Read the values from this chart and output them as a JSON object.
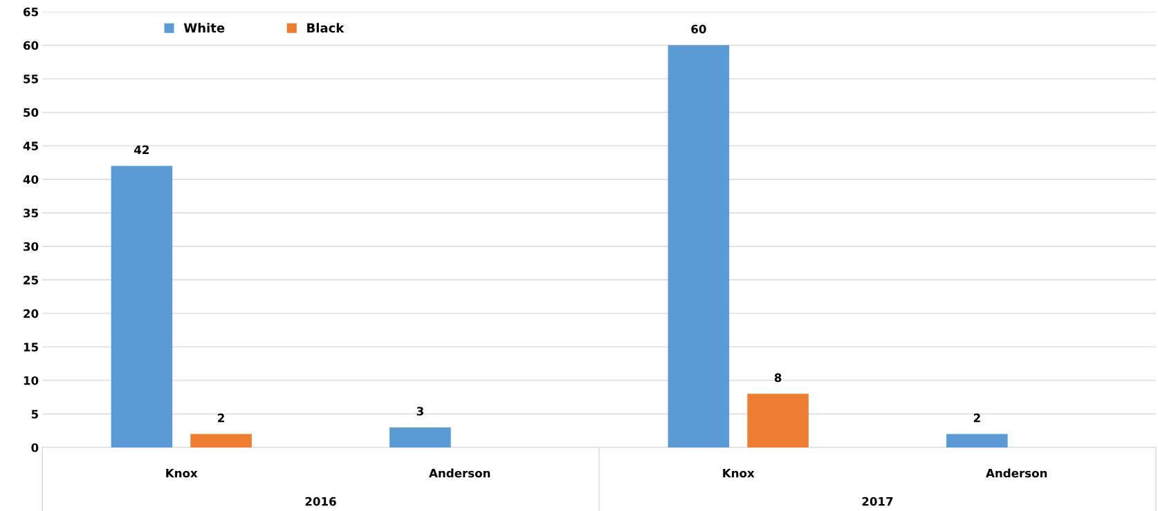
{
  "chart_data": {
    "type": "bar",
    "categories": [
      "Knox",
      "Anderson",
      "Knox",
      "Anderson"
    ],
    "series": [
      {
        "name": "White",
        "color": "#5b9bd5",
        "values": [
          42,
          3,
          60,
          2
        ]
      },
      {
        "name": "Black",
        "color": "#ed7d31",
        "values": [
          2,
          null,
          8,
          null
        ]
      }
    ],
    "data_labels": true,
    "ylim": [
      0,
      65
    ],
    "yticks": [
      0,
      5,
      10,
      15,
      20,
      25,
      30,
      35,
      40,
      45,
      50,
      55,
      60,
      65
    ],
    "grid": "y",
    "legend": "top left",
    "annotations": [
      "2016",
      "2017"
    ]
  }
}
